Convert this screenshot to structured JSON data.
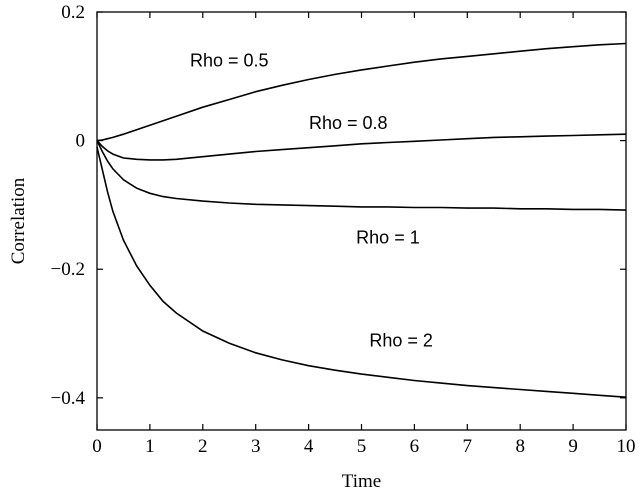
{
  "chart_data": {
    "type": "line",
    "title": "",
    "xlabel": "Time",
    "ylabel": "Correlation",
    "xlim": [
      0,
      10
    ],
    "ylim": [
      -0.45,
      0.2
    ],
    "x_ticks": [
      0,
      1,
      2,
      3,
      4,
      5,
      6,
      7,
      8,
      9,
      10
    ],
    "x_tick_labels": [
      "0",
      "1",
      "2",
      "3",
      "4",
      "5",
      "6",
      "7",
      "8",
      "9",
      "10"
    ],
    "y_ticks": [
      -0.4,
      -0.2,
      0,
      0.2
    ],
    "y_tick_labels": [
      "−0.4",
      "−0.2",
      "0",
      "0.2"
    ],
    "grid": false,
    "legend": "none",
    "line_color": "#000000",
    "x": [
      0,
      0.1,
      0.2,
      0.3,
      0.5,
      0.75,
      1,
      1.25,
      1.5,
      2,
      2.5,
      3,
      3.5,
      4,
      4.5,
      5,
      5.5,
      6,
      6.5,
      7,
      7.5,
      8,
      8.5,
      9,
      9.5,
      10
    ],
    "series": [
      {
        "name": "Rho = 0.5",
        "values": [
          0,
          0.001,
          0.003,
          0.005,
          0.01,
          0.017,
          0.024,
          0.031,
          0.038,
          0.052,
          0.064,
          0.076,
          0.086,
          0.095,
          0.103,
          0.11,
          0.116,
          0.122,
          0.127,
          0.131,
          0.135,
          0.139,
          0.143,
          0.146,
          0.149,
          0.151
        ]
      },
      {
        "name": "Rho = 0.8",
        "values": [
          0,
          -0.009,
          -0.016,
          -0.021,
          -0.027,
          -0.029,
          -0.03,
          -0.03,
          -0.029,
          -0.025,
          -0.021,
          -0.017,
          -0.014,
          -0.011,
          -0.008,
          -0.005,
          -0.003,
          -0.001,
          0.001,
          0.003,
          0.005,
          0.006,
          0.007,
          0.008,
          0.009,
          0.01
        ]
      },
      {
        "name": "Rho = 1",
        "values": [
          0,
          -0.017,
          -0.032,
          -0.044,
          -0.061,
          -0.074,
          -0.082,
          -0.087,
          -0.09,
          -0.094,
          -0.097,
          -0.099,
          -0.1,
          -0.101,
          -0.102,
          -0.103,
          -0.103,
          -0.104,
          -0.104,
          -0.105,
          -0.105,
          -0.106,
          -0.106,
          -0.107,
          -0.107,
          -0.108
        ]
      },
      {
        "name": "Rho = 2",
        "values": [
          -0.01,
          -0.045,
          -0.08,
          -0.11,
          -0.155,
          -0.195,
          -0.225,
          -0.25,
          -0.268,
          -0.296,
          -0.315,
          -0.33,
          -0.341,
          -0.35,
          -0.357,
          -0.363,
          -0.368,
          -0.373,
          -0.377,
          -0.381,
          -0.384,
          -0.387,
          -0.39,
          -0.393,
          -0.396,
          -0.399
        ]
      }
    ],
    "annotations": [
      {
        "text": "Rho = 0.5",
        "x": 2.5,
        "y": 0.115
      },
      {
        "text": "Rho = 0.8",
        "x": 4.75,
        "y": 0.018
      },
      {
        "text": "Rho = 1",
        "x": 5.5,
        "y": -0.16
      },
      {
        "text": "Rho = 2",
        "x": 5.75,
        "y": -0.32
      }
    ]
  }
}
